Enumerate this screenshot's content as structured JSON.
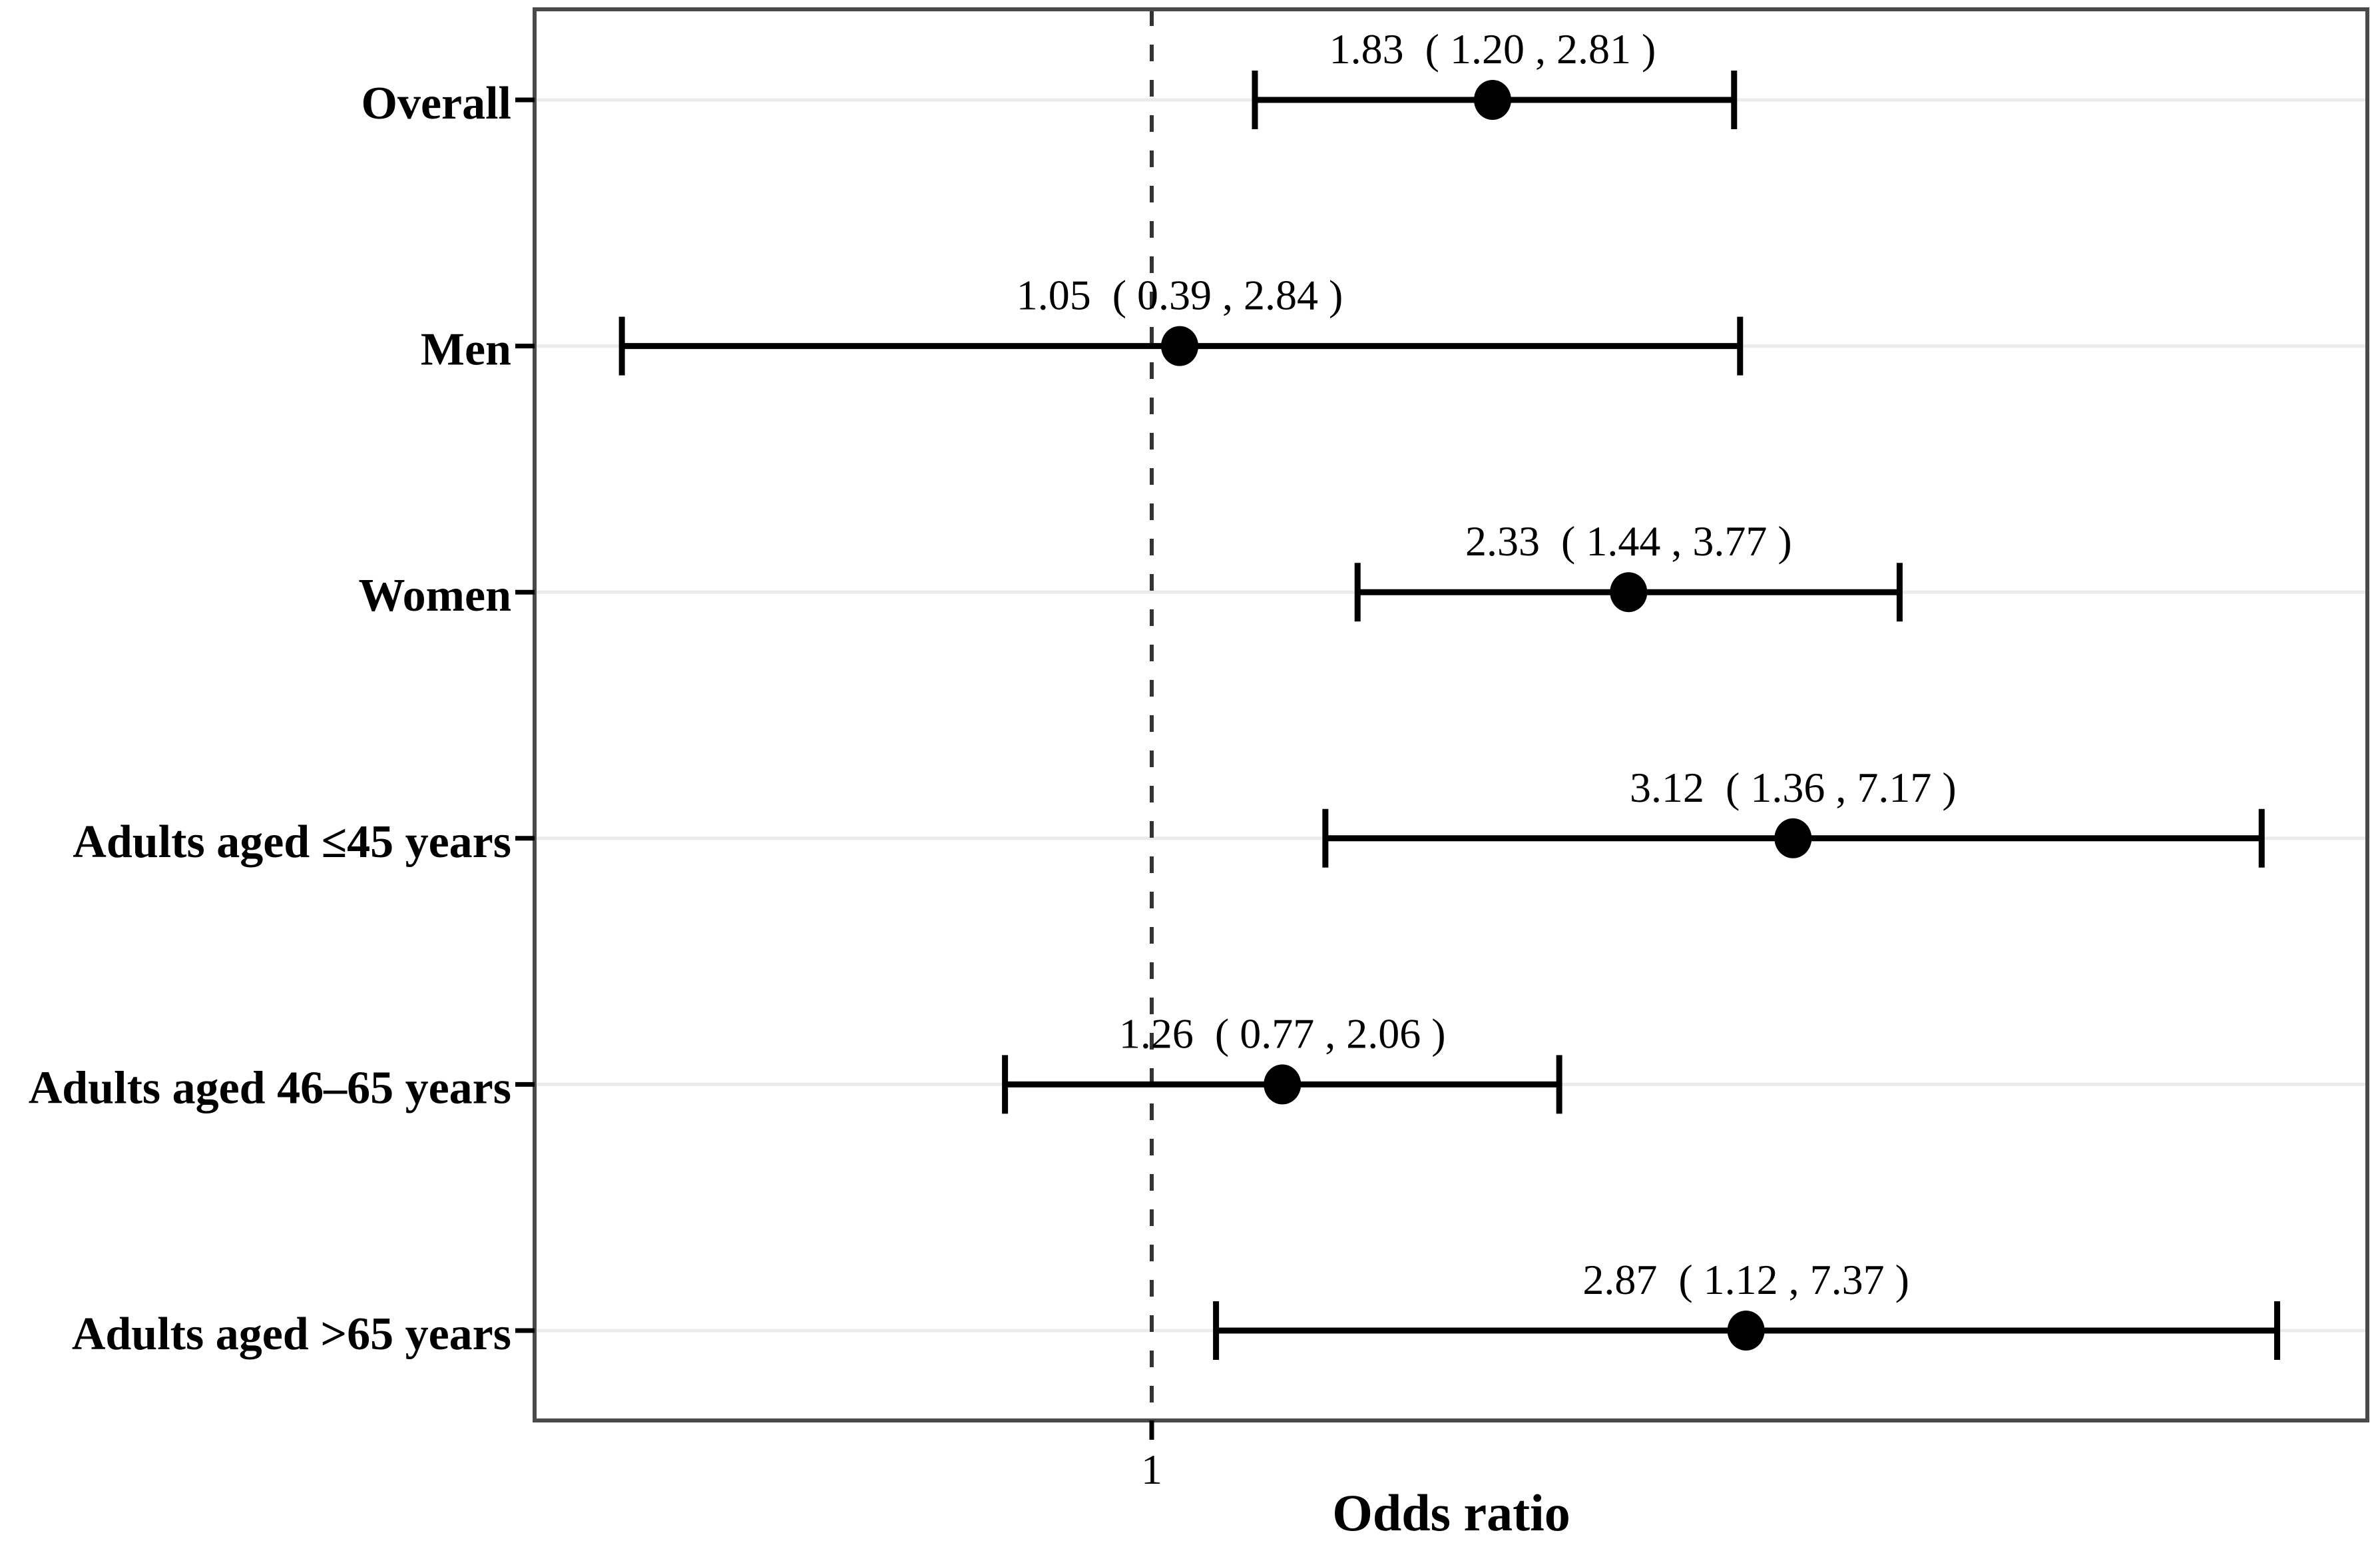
{
  "figure": {
    "background": "#ffffff"
  },
  "chart_data": {
    "type": "scatter",
    "subtype": "forest-plot",
    "title": "",
    "xlabel": "Odds ratio",
    "ylabel": "",
    "x_scale": "log10",
    "x_domain": [
      0.334,
      8.65
    ],
    "x_ticks": [
      1
    ],
    "x_tick_labels": [
      "1"
    ],
    "reference_line": 1,
    "grid": "horizontal-major-only",
    "legend": "none",
    "categories": [
      "Overall",
      "Men",
      "Women",
      "Adults aged ≤45 years",
      "Adults aged 46–65 years",
      "Adults aged >65 years"
    ],
    "rows": [
      {
        "label": "Overall",
        "or": 1.83,
        "ci_low": 1.2,
        "ci_high": 2.81,
        "annotation": "1.83  ( 1.20 , 2.81 )"
      },
      {
        "label": "Men",
        "or": 1.05,
        "ci_low": 0.39,
        "ci_high": 2.84,
        "annotation": "1.05  ( 0.39 , 2.84 )"
      },
      {
        "label": "Women",
        "or": 2.33,
        "ci_low": 1.44,
        "ci_high": 3.77,
        "annotation": "2.33  ( 1.44 , 3.77 )"
      },
      {
        "label": "Adults aged ≤45 years",
        "or": 3.12,
        "ci_low": 1.36,
        "ci_high": 7.17,
        "annotation": "3.12  ( 1.36 , 7.17 )"
      },
      {
        "label": "Adults aged 46–65 years",
        "or": 1.26,
        "ci_low": 0.77,
        "ci_high": 2.06,
        "annotation": "1.26  ( 0.77 , 2.06 )"
      },
      {
        "label": "Adults aged >65 years",
        "or": 2.87,
        "ci_low": 1.12,
        "ci_high": 7.37,
        "annotation": "2.87  ( 1.12 , 7.37 )"
      }
    ],
    "colors": {
      "point": "#000000",
      "ci_line": "#000000",
      "grid_line": "#ebebeb",
      "panel_border": "#4a4a4a",
      "reference_line": "#333333",
      "tick_mark": "#000000",
      "text": "#000000"
    }
  }
}
